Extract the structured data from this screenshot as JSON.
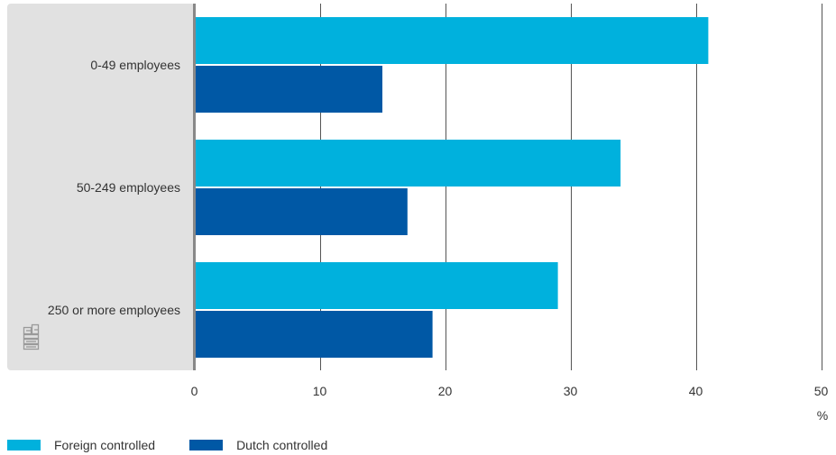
{
  "chart_data": {
    "type": "bar",
    "orientation": "horizontal",
    "categories": [
      "0-49 employees",
      "50-249 employees",
      "250 or more employees"
    ],
    "series": [
      {
        "name": "Foreign controlled",
        "values": [
          41,
          34,
          29
        ],
        "color": "#00b1dd"
      },
      {
        "name": "Dutch controlled",
        "values": [
          15,
          17,
          19
        ],
        "color": "#0058a5"
      }
    ],
    "xlim": [
      0,
      50
    ],
    "xticks": [
      0,
      10,
      20,
      30,
      40,
      50
    ],
    "unit_label": "%",
    "grid": true,
    "legend_position": "bottom-left",
    "logo": "cbs-logo-icon"
  },
  "colors": {
    "category_panel": "#e1e1e1",
    "axis_line": "#888888",
    "grid_line": "#555555"
  }
}
